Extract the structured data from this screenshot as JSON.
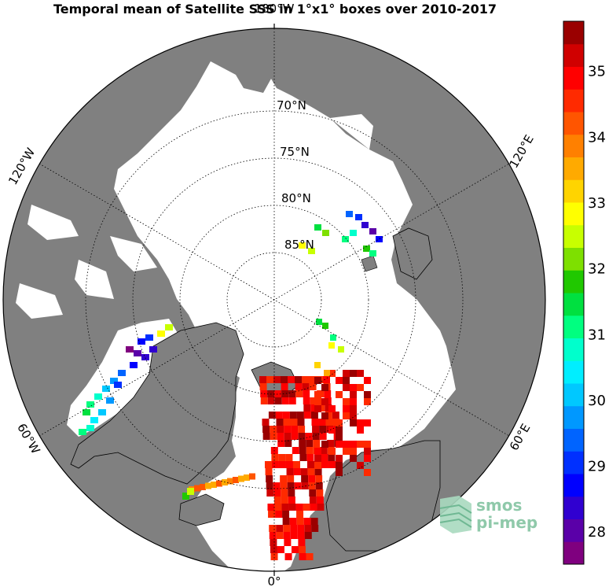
{
  "title": "Temporal mean of Satellite SSS in 1°x1° boxes over 2010-2017",
  "map": {
    "projection": "north-polar-stereographic",
    "land_color": "#808080",
    "ocean_color": "#ffffff",
    "lat_labels": [
      "70°N",
      "75°N",
      "80°N",
      "85°N"
    ],
    "lon_labels": {
      "top": "180°W",
      "bottom": "0°",
      "upper_left": "120°W",
      "upper_right": "120°E",
      "lower_left": "60°W",
      "lower_right": "60°E"
    }
  },
  "colorbar": {
    "min": 27.5,
    "max": 35.75,
    "tick_values": [
      28,
      29,
      30,
      31,
      32,
      33,
      34,
      35
    ],
    "tick_labels": [
      "28",
      "29",
      "30",
      "31",
      "32",
      "33",
      "34",
      "35"
    ],
    "colors": [
      "#7f007f",
      "#5a00a8",
      "#3000d0",
      "#0000ff",
      "#0030ff",
      "#0064ff",
      "#0098ff",
      "#00c8ff",
      "#00eeff",
      "#00ffcc",
      "#00ff80",
      "#00e040",
      "#20c800",
      "#7ee000",
      "#c8ff00",
      "#ffff00",
      "#ffd400",
      "#ffaa00",
      "#ff8000",
      "#ff5500",
      "#ff2a00",
      "#ff0000",
      "#d00000",
      "#9a0000"
    ]
  },
  "logo": {
    "line1": "smos",
    "line2": "pi-mep"
  }
}
